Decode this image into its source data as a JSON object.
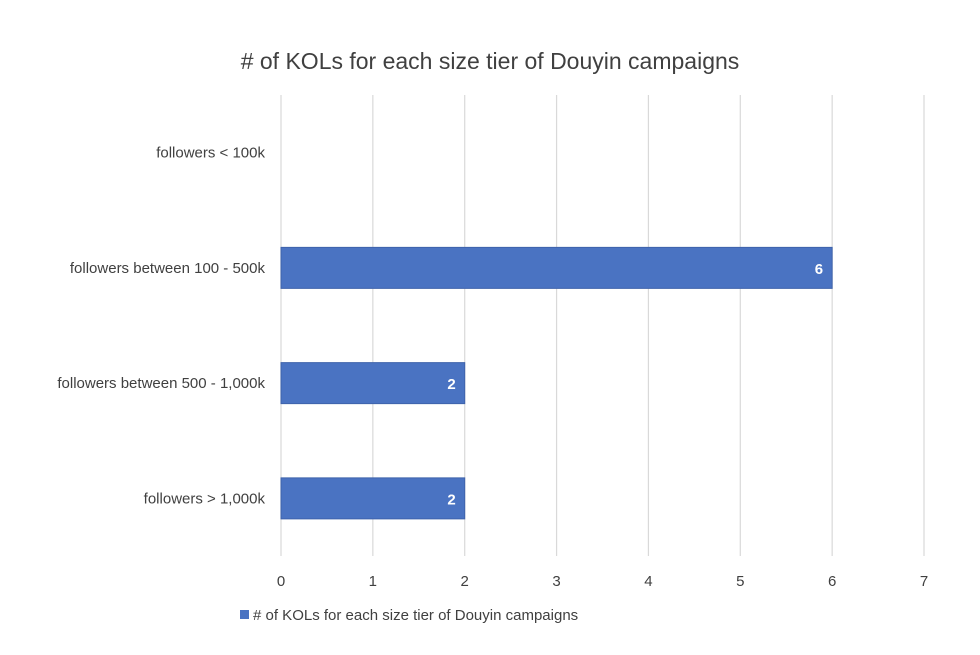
{
  "chart_data": {
    "type": "bar",
    "orientation": "horizontal",
    "title": "# of KOLs for each size tier of Douyin campaigns",
    "xlabel": "",
    "ylabel": "",
    "categories": [
      "followers < 100k",
      "followers between 100 - 500k",
      "followers between 500 - 1,000k",
      "followers > 1,000k"
    ],
    "series": [
      {
        "name": "# of KOLs for each size tier of Douyin campaigns",
        "values": [
          0,
          6,
          2,
          2
        ],
        "data_labels": [
          "",
          "6",
          "2",
          "2"
        ]
      }
    ],
    "xlim": [
      0,
      7
    ],
    "x_ticks": [
      "0",
      "1",
      "2",
      "3",
      "4",
      "5",
      "6",
      "7"
    ],
    "grid": "vertical",
    "legend_position": "bottom-left",
    "colors": {
      "bar": "#4a73c2",
      "bar_edge": "#3f63ab",
      "grid": "#d9d9d9",
      "text": "#404040",
      "label": "#ffffff"
    }
  }
}
